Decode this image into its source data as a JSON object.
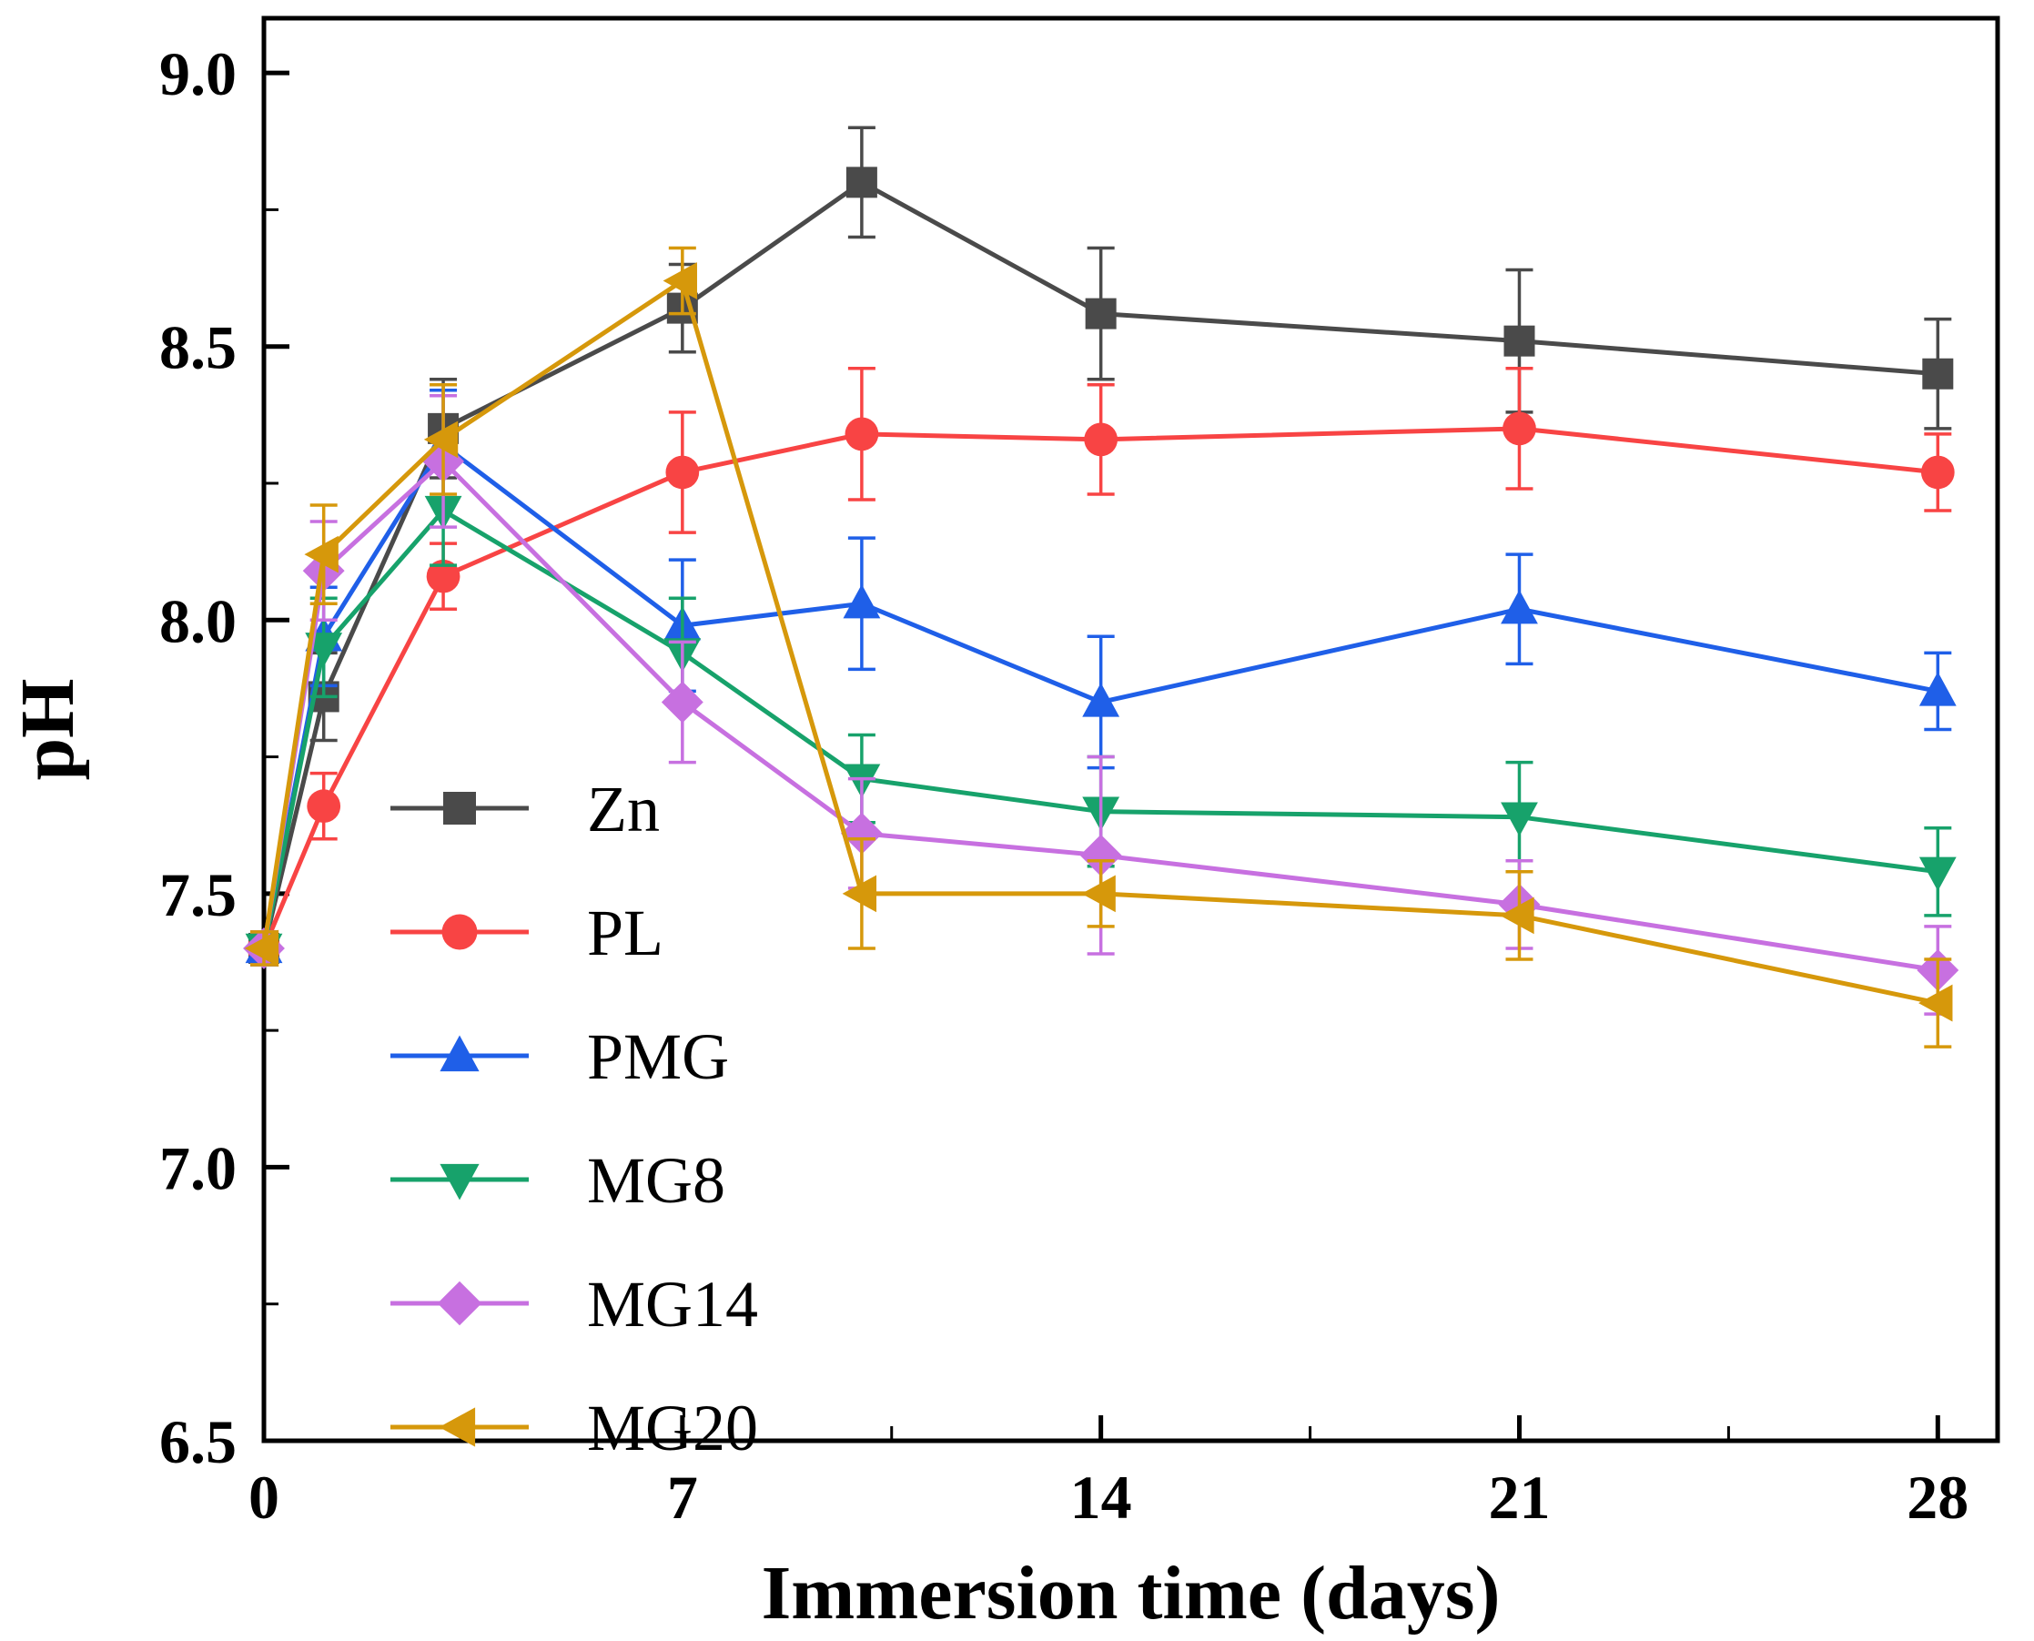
{
  "figure": {
    "background": "#ffffff",
    "axis_color": "#000000"
  },
  "chart_data": {
    "type": "line",
    "title": "",
    "xlabel": "Immersion time (days)",
    "ylabel": "pH",
    "xlim": [
      0,
      29
    ],
    "ylim": [
      6.5,
      9.1
    ],
    "x_ticks": [
      0,
      7,
      14,
      21,
      28
    ],
    "x_tick_labels": [
      "0",
      "7",
      "14",
      "21",
      "28"
    ],
    "y_ticks": [
      6.5,
      7.0,
      7.5,
      8.0,
      8.5,
      9.0
    ],
    "y_tick_labels": [
      "6.5",
      "7.0",
      "7.5",
      "8.0",
      "8.5",
      "9.0"
    ],
    "grid": false,
    "error_bars": true,
    "x": [
      0,
      1,
      3,
      7,
      10,
      14,
      21,
      28
    ],
    "series": [
      {
        "name": "Zn",
        "color": "#4a4a4a",
        "marker": "square",
        "values": [
          7.4,
          7.86,
          8.35,
          8.57,
          8.8,
          8.56,
          8.51,
          8.45
        ],
        "errors": [
          0.03,
          0.08,
          0.09,
          0.08,
          0.1,
          0.12,
          0.13,
          0.1
        ]
      },
      {
        "name": "PL",
        "color": "#f84444",
        "marker": "circle",
        "values": [
          7.4,
          7.66,
          8.08,
          8.27,
          8.34,
          8.33,
          8.35,
          8.27
        ],
        "errors": [
          0.03,
          0.06,
          0.06,
          0.11,
          0.12,
          0.1,
          0.11,
          0.07
        ]
      },
      {
        "name": "PMG",
        "color": "#1f5fe8",
        "marker": "triangle-up",
        "values": [
          7.4,
          7.97,
          8.32,
          7.99,
          8.03,
          7.85,
          8.02,
          7.87
        ],
        "errors": [
          0.03,
          0.09,
          0.1,
          0.12,
          0.12,
          0.12,
          0.1,
          0.07
        ]
      },
      {
        "name": "MG8",
        "color": "#17a26b",
        "marker": "triangle-down",
        "values": [
          7.4,
          7.95,
          8.2,
          7.94,
          7.71,
          7.65,
          7.64,
          7.54
        ],
        "errors": [
          0.03,
          0.09,
          0.1,
          0.1,
          0.08,
          0.1,
          0.1,
          0.08
        ]
      },
      {
        "name": "MG14",
        "color": "#c770e0",
        "marker": "diamond",
        "values": [
          7.4,
          8.09,
          8.29,
          7.85,
          7.61,
          7.57,
          7.48,
          7.36
        ],
        "errors": [
          0.03,
          0.09,
          0.12,
          0.11,
          0.1,
          0.18,
          0.08,
          0.08
        ]
      },
      {
        "name": "MG20",
        "color": "#d6980b",
        "marker": "triangle-left",
        "values": [
          7.4,
          8.12,
          8.33,
          8.62,
          7.5,
          7.5,
          7.46,
          7.3
        ],
        "errors": [
          0.03,
          0.09,
          0.1,
          0.06,
          0.1,
          0.06,
          0.08,
          0.08
        ]
      }
    ],
    "legend": {
      "position": "inside-left-bottom",
      "labels": [
        "Zn",
        "PL",
        "PMG",
        "MG8",
        "MG14",
        "MG20"
      ]
    }
  }
}
